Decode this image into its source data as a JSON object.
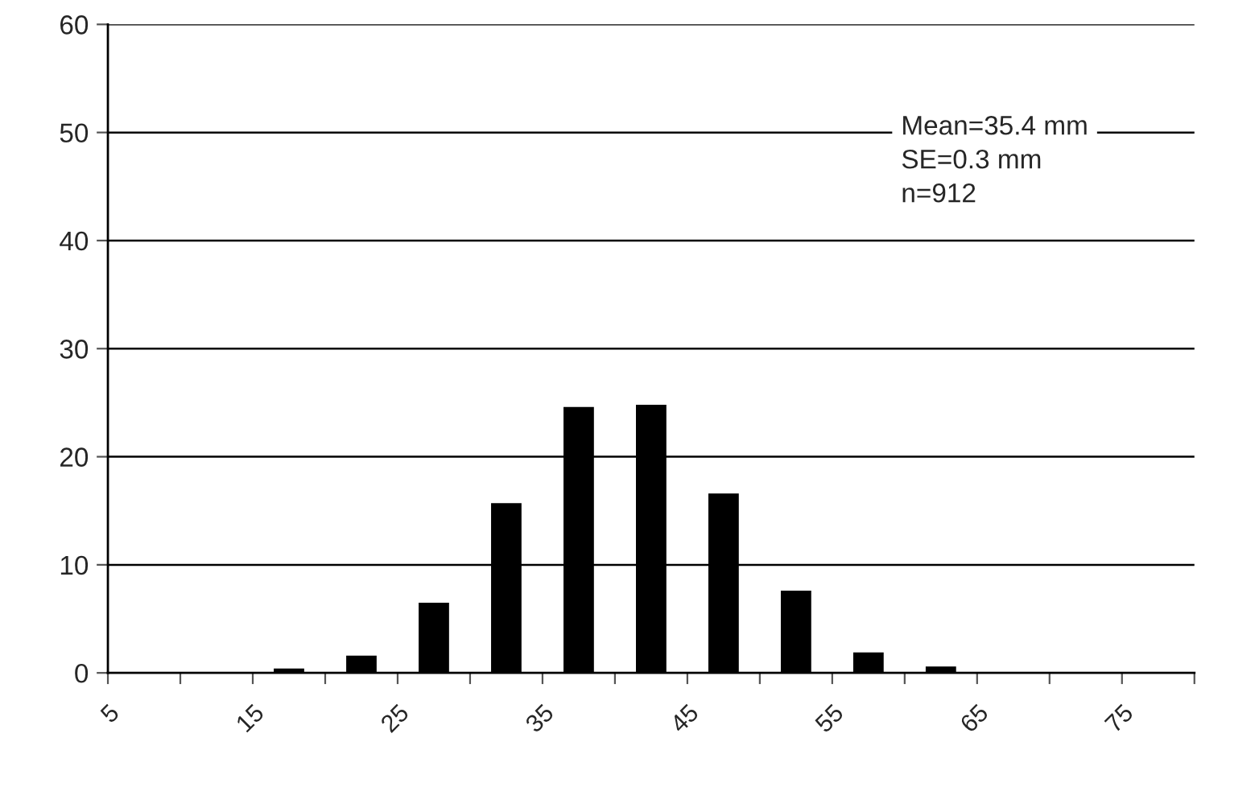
{
  "chart_data": {
    "type": "histogram",
    "bins": [
      5,
      10,
      15,
      20,
      25,
      30,
      35,
      40,
      45,
      50,
      55,
      60,
      65,
      70,
      75,
      80
    ],
    "values": [
      0,
      0,
      0.4,
      1.6,
      6.5,
      15.7,
      24.6,
      24.8,
      16.6,
      7.6,
      1.9,
      0.6,
      0,
      0,
      0
    ],
    "color": "#000000",
    "xlim": [
      5,
      80
    ],
    "xticks": [
      5,
      {
        "value": 10,
        "label": null
      },
      15,
      {
        "value": 20,
        "label": null
      },
      25,
      {
        "value": 30,
        "label": null
      },
      35,
      {
        "value": 40,
        "label": null
      },
      45,
      {
        "value": 50,
        "label": null
      },
      55,
      {
        "value": 60,
        "label": null
      },
      65,
      {
        "value": 70,
        "label": null
      },
      75,
      {
        "value": 80,
        "label": null
      }
    ],
    "ylim": [
      0,
      60
    ],
    "yticks": [
      0,
      10,
      20,
      30,
      40,
      50,
      60
    ],
    "grid": "y",
    "annotations": [
      "Mean=35.4 mm\nSE=0.3 mm\nn=912"
    ]
  }
}
